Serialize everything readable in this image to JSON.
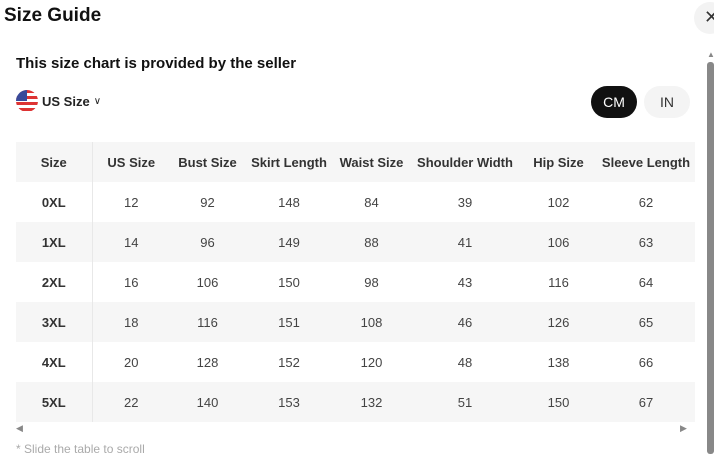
{
  "title": "Size Guide",
  "subtitle": "This size chart is provided by the seller",
  "size_system": "US Size",
  "units": [
    "CM",
    "IN"
  ],
  "selected_unit": "CM",
  "table": {
    "headers": [
      "Size",
      "US Size",
      "Bust Size",
      "Skirt Length",
      "Waist Size",
      "Shoulder Width",
      "Hip Size",
      "Sleeve Length"
    ],
    "rows": [
      [
        "0XL",
        "12",
        "92",
        "148",
        "84",
        "39",
        "102",
        "62"
      ],
      [
        "1XL",
        "14",
        "96",
        "149",
        "88",
        "41",
        "106",
        "63"
      ],
      [
        "2XL",
        "16",
        "106",
        "150",
        "98",
        "43",
        "116",
        "64"
      ],
      [
        "3XL",
        "18",
        "116",
        "151",
        "108",
        "46",
        "126",
        "65"
      ],
      [
        "4XL",
        "20",
        "128",
        "152",
        "120",
        "48",
        "138",
        "66"
      ],
      [
        "5XL",
        "22",
        "140",
        "153",
        "132",
        "51",
        "150",
        "67"
      ]
    ]
  },
  "scroll_note": "* Slide the table to scroll"
}
